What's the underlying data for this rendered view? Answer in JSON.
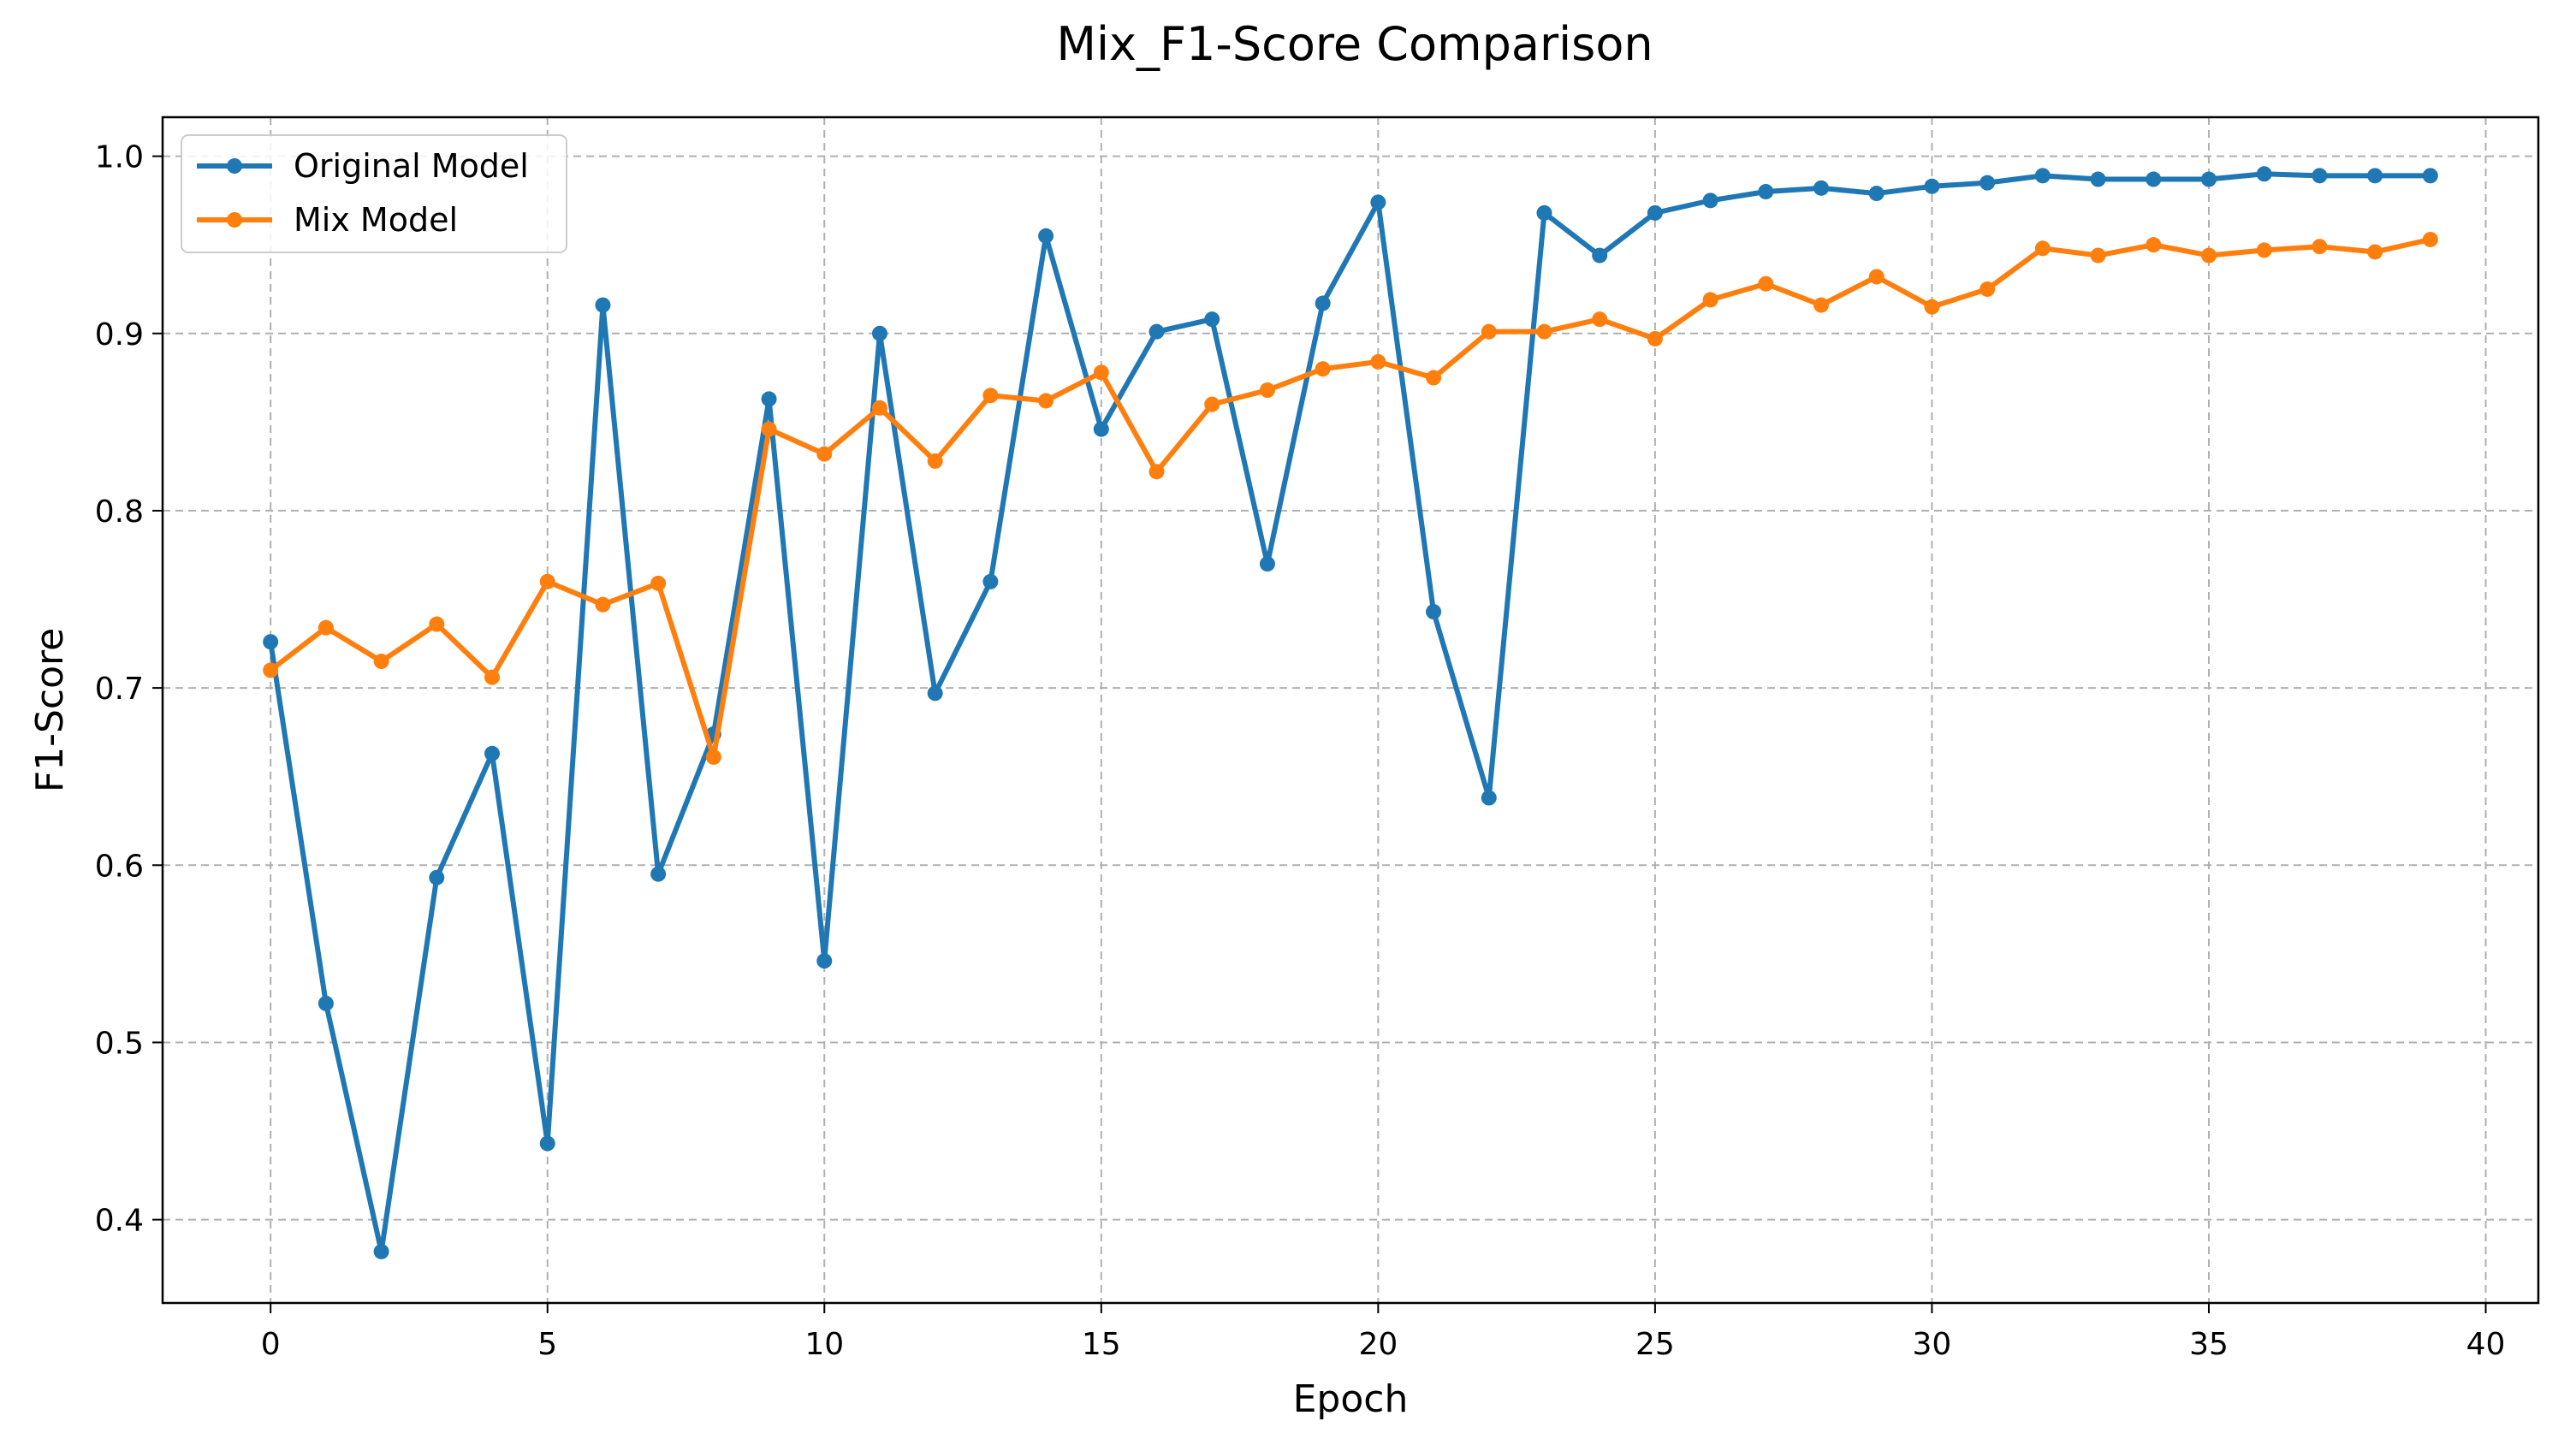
{
  "chart_data": {
    "type": "line",
    "title": "Mix_F1-Score Comparison",
    "xlabel": "Epoch",
    "ylabel": "F1-Score",
    "xlim": [
      -1.95,
      40.95
    ],
    "ylim": [
      0.353,
      1.022
    ],
    "xticks": [
      0,
      5,
      10,
      15,
      20,
      25,
      30,
      35,
      40
    ],
    "yticks": [
      0.4,
      0.5,
      0.6,
      0.7,
      0.8,
      0.9,
      1.0
    ],
    "ytick_labels": [
      "0.4",
      "0.5",
      "0.6",
      "0.7",
      "0.8",
      "0.9",
      "1.0"
    ],
    "grid": true,
    "legend_position": "top-left",
    "x": [
      0,
      1,
      2,
      3,
      4,
      5,
      6,
      7,
      8,
      9,
      10,
      11,
      12,
      13,
      14,
      15,
      16,
      17,
      18,
      19,
      20,
      21,
      22,
      23,
      24,
      25,
      26,
      27,
      28,
      29,
      30,
      31,
      32,
      33,
      34,
      35,
      36,
      37,
      38,
      39
    ],
    "series": [
      {
        "name": "Original Model",
        "color": "#1f77b4",
        "values": [
          0.726,
          0.522,
          0.382,
          0.593,
          0.663,
          0.443,
          0.916,
          0.595,
          0.674,
          0.863,
          0.546,
          0.9,
          0.697,
          0.76,
          0.955,
          0.846,
          0.901,
          0.908,
          0.77,
          0.917,
          0.974,
          0.743,
          0.638,
          0.968,
          0.944,
          0.968,
          0.975,
          0.98,
          0.982,
          0.979,
          0.983,
          0.985,
          0.989,
          0.987,
          0.987,
          0.987,
          0.99,
          0.989,
          0.989,
          0.989
        ]
      },
      {
        "name": "Mix Model",
        "color": "#ff7f0e",
        "values": [
          0.71,
          0.734,
          0.715,
          0.736,
          0.706,
          0.76,
          0.747,
          0.759,
          0.661,
          0.846,
          0.832,
          0.858,
          0.828,
          0.865,
          0.862,
          0.878,
          0.822,
          0.86,
          0.868,
          0.88,
          0.884,
          0.875,
          0.901,
          0.901,
          0.908,
          0.897,
          0.919,
          0.928,
          0.916,
          0.932,
          0.915,
          0.925,
          0.948,
          0.944,
          0.95,
          0.944,
          0.947,
          0.949,
          0.946,
          0.953
        ]
      }
    ]
  }
}
